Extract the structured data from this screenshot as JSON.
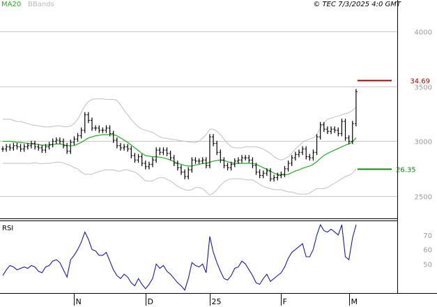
{
  "header": {
    "legend_ma": "MA20",
    "legend_bands": "BBands",
    "copyright": "© TEC 7/3/2025 4:0 GMT"
  },
  "colors": {
    "price": "#000000",
    "ma": "#22aa22",
    "bands": "#c0c0c0",
    "rsi": "#1a1aa8",
    "resistance": "#aa0000",
    "support": "#118811",
    "grid": "#c8c8c8",
    "tick": "#9a9a9a"
  },
  "chart_data": [
    {
      "type": "line",
      "name": "price-panel",
      "ylim": [
        2300,
        4200
      ],
      "yticks": [
        "4000",
        "3500",
        "3000",
        "2500"
      ],
      "x_labels": [
        "N",
        "D",
        "25",
        "F",
        "M"
      ],
      "x_label_index": [
        20,
        40,
        58,
        78,
        97
      ],
      "resistance": {
        "value": 34.69,
        "label": "34.69"
      },
      "support": {
        "value": 26.35,
        "label": "26.35"
      },
      "series": [
        {
          "values": [
            2930,
            2950,
            2940,
            2960,
            2950,
            2930,
            2950,
            2960,
            2980,
            2950,
            2940,
            2920,
            2950,
            2970,
            3000,
            3010,
            3000,
            2960,
            2910,
            2990,
            3020,
            3050,
            3100,
            3240,
            3190,
            3120,
            3120,
            3100,
            3100,
            3120,
            3070,
            3010,
            2960,
            2940,
            2950,
            2930,
            2870,
            2830,
            2860,
            2800,
            2770,
            2790,
            2830,
            2920,
            2900,
            2920,
            2890,
            2850,
            2800,
            2760,
            2720,
            2680,
            2740,
            2830,
            2820,
            2820,
            2830,
            2780,
            3040,
            2980,
            2900,
            2830,
            2780,
            2760,
            2790,
            2820,
            2830,
            2850,
            2850,
            2830,
            2780,
            2720,
            2690,
            2710,
            2730,
            2660,
            2670,
            2690,
            2700,
            2750,
            2800,
            2850,
            2880,
            2900,
            2930,
            2860,
            2850,
            2900,
            3040,
            3150,
            3110,
            3090,
            3110,
            3100,
            3070,
            3180,
            3030,
            3000,
            3160,
            3450
          ],
          "ma": [
            3000,
            3000,
            3000,
            2995,
            2990,
            2990,
            2985,
            2980,
            2975,
            2975,
            2970,
            2965,
            2965,
            2965,
            2970,
            2975,
            2975,
            2970,
            2960,
            2960,
            2960,
            2975,
            2990,
            3010,
            3030,
            3040,
            3050,
            3055,
            3060,
            3060,
            3060,
            3060,
            3050,
            3030,
            3010,
            2990,
            2965,
            2940,
            2915,
            2890,
            2870,
            2865,
            2860,
            2860,
            2855,
            2850,
            2840,
            2830,
            2815,
            2800,
            2790,
            2780,
            2775,
            2775,
            2785,
            2790,
            2800,
            2800,
            2810,
            2820,
            2825,
            2830,
            2825,
            2815,
            2805,
            2800,
            2800,
            2800,
            2800,
            2800,
            2800,
            2790,
            2775,
            2760,
            2745,
            2730,
            2710,
            2700,
            2695,
            2695,
            2700,
            2715,
            2730,
            2740,
            2755,
            2765,
            2775,
            2790,
            2815,
            2845,
            2870,
            2890,
            2905,
            2920,
            2935,
            2950,
            2965,
            2975,
            2995,
            3030
          ],
          "upper": [
            3200,
            3200,
            3200,
            3190,
            3180,
            3180,
            3170,
            3160,
            3150,
            3145,
            3140,
            3135,
            3130,
            3130,
            3135,
            3140,
            3140,
            3135,
            3130,
            3140,
            3160,
            3200,
            3260,
            3320,
            3360,
            3380,
            3385,
            3385,
            3385,
            3380,
            3380,
            3380,
            3370,
            3330,
            3280,
            3240,
            3200,
            3160,
            3130,
            3110,
            3100,
            3090,
            3080,
            3060,
            3040,
            3030,
            3025,
            3020,
            3015,
            3010,
            3005,
            3000,
            2995,
            2990,
            2990,
            3000,
            3030,
            3060,
            3110,
            3110,
            3090,
            3060,
            3020,
            2980,
            2950,
            2940,
            2940,
            2940,
            2950,
            2950,
            2950,
            2950,
            2940,
            2930,
            2910,
            2890,
            2860,
            2840,
            2830,
            2840,
            2860,
            2890,
            2930,
            2960,
            2990,
            3010,
            3020,
            3030,
            3060,
            3120,
            3170,
            3200,
            3210,
            3220,
            3230,
            3240,
            3250,
            3260,
            3280,
            3310
          ],
          "lower": [
            2800,
            2800,
            2800,
            2800,
            2800,
            2800,
            2800,
            2800,
            2800,
            2805,
            2800,
            2795,
            2800,
            2800,
            2805,
            2810,
            2810,
            2805,
            2790,
            2780,
            2760,
            2750,
            2720,
            2700,
            2700,
            2700,
            2715,
            2725,
            2735,
            2740,
            2740,
            2740,
            2730,
            2730,
            2740,
            2740,
            2730,
            2720,
            2700,
            2670,
            2640,
            2640,
            2640,
            2660,
            2670,
            2670,
            2655,
            2640,
            2615,
            2590,
            2575,
            2560,
            2555,
            2560,
            2580,
            2580,
            2570,
            2540,
            2510,
            2530,
            2560,
            2600,
            2630,
            2650,
            2660,
            2660,
            2660,
            2660,
            2650,
            2650,
            2650,
            2630,
            2610,
            2590,
            2580,
            2570,
            2560,
            2560,
            2560,
            2550,
            2540,
            2540,
            2530,
            2520,
            2520,
            2520,
            2530,
            2550,
            2570,
            2570,
            2570,
            2580,
            2600,
            2620,
            2640,
            2660,
            2680,
            2690,
            2710,
            2750
          ]
        }
      ]
    },
    {
      "type": "line",
      "name": "rsi-panel",
      "title": "RSI",
      "ylim": [
        30,
        80
      ],
      "yticks": [
        "70",
        "60",
        "50"
      ],
      "series": [
        {
          "values": [
            42,
            46,
            49,
            48,
            46,
            47,
            48,
            47,
            49,
            48,
            45,
            44,
            48,
            49,
            52,
            53,
            51,
            46,
            41,
            53,
            56,
            60,
            65,
            72,
            67,
            60,
            59,
            56,
            56,
            58,
            52,
            46,
            42,
            40,
            43,
            41,
            37,
            35,
            40,
            36,
            33,
            36,
            40,
            50,
            47,
            49,
            45,
            43,
            40,
            37,
            35,
            32,
            40,
            51,
            49,
            48,
            50,
            44,
            69,
            58,
            51,
            45,
            40,
            39,
            42,
            47,
            48,
            52,
            50,
            46,
            42,
            37,
            36,
            40,
            43,
            38,
            40,
            42,
            44,
            48,
            54,
            58,
            60,
            62,
            64,
            55,
            55,
            60,
            70,
            77,
            73,
            72,
            74,
            72,
            70,
            77,
            55,
            53,
            68,
            77
          ]
        }
      ]
    }
  ]
}
